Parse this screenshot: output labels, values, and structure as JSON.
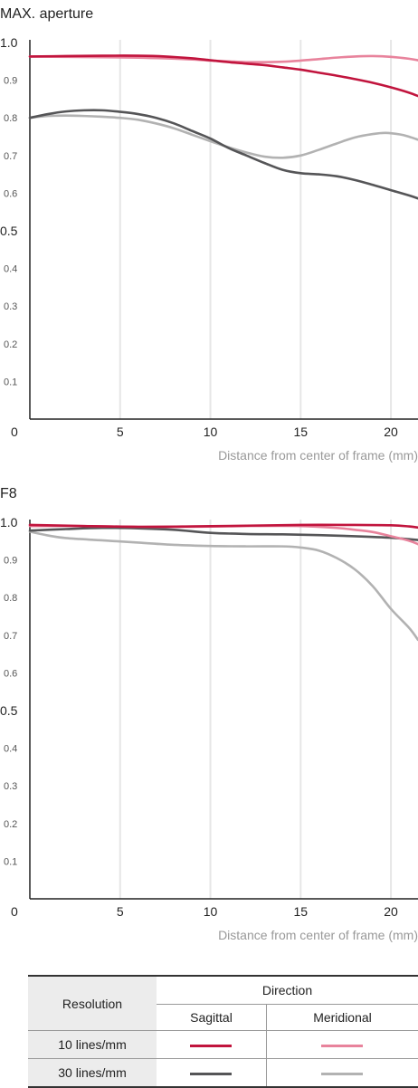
{
  "colors": {
    "s10": "#c1143d",
    "m10": "#e8839c",
    "s30": "#555557",
    "m30": "#b2b2b2"
  },
  "chart_data": [
    {
      "type": "line",
      "title": "MAX. aperture",
      "xlabel": "Distance from center of frame (mm)",
      "ylabel": "",
      "xlim": [
        0,
        21.5
      ],
      "ylim": [
        0,
        1.0
      ],
      "x_ticks": [
        "0",
        "5",
        "10",
        "15",
        "20"
      ],
      "y_ticks": [
        "1.0",
        "0.9",
        "0.8",
        "0.7",
        "0.6",
        "0.5",
        "0.4",
        "0.3",
        "0.2",
        "0.1"
      ],
      "grid": "vertical",
      "series": [
        {
          "key": "s10",
          "x": [
            0,
            2,
            4,
            6,
            7.5,
            9,
            10,
            11,
            12,
            13,
            14,
            15,
            16,
            17,
            18,
            19,
            20,
            21,
            21.5
          ],
          "y": [
            0.963,
            0.964,
            0.965,
            0.965,
            0.963,
            0.958,
            0.953,
            0.948,
            0.944,
            0.94,
            0.934,
            0.928,
            0.92,
            0.912,
            0.903,
            0.893,
            0.881,
            0.867,
            0.858
          ]
        },
        {
          "key": "m10",
          "x": [
            0,
            2,
            4,
            6,
            7.5,
            9,
            10,
            11,
            12,
            13,
            14,
            15,
            16,
            17,
            18,
            19,
            20,
            21,
            21.5
          ],
          "y": [
            0.963,
            0.962,
            0.961,
            0.96,
            0.958,
            0.955,
            0.952,
            0.95,
            0.948,
            0.948,
            0.949,
            0.952,
            0.956,
            0.96,
            0.963,
            0.964,
            0.962,
            0.957,
            0.953
          ]
        },
        {
          "key": "s30",
          "x": [
            0,
            1,
            2,
            3,
            4,
            5,
            6,
            7,
            8,
            9,
            10,
            11,
            12,
            13,
            14,
            15,
            16,
            17,
            18,
            19,
            20,
            21,
            21.5
          ],
          "y": [
            0.8,
            0.81,
            0.817,
            0.82,
            0.82,
            0.816,
            0.81,
            0.8,
            0.785,
            0.765,
            0.745,
            0.72,
            0.7,
            0.68,
            0.662,
            0.653,
            0.65,
            0.645,
            0.635,
            0.622,
            0.608,
            0.594,
            0.586
          ]
        },
        {
          "key": "m30",
          "x": [
            0,
            1,
            2,
            3,
            4,
            5,
            6,
            7,
            8,
            9,
            10,
            11,
            12,
            13,
            14,
            15,
            16,
            17,
            18,
            19,
            19.7,
            20.5,
            21,
            21.5
          ],
          "y": [
            0.8,
            0.805,
            0.806,
            0.805,
            0.803,
            0.8,
            0.795,
            0.785,
            0.772,
            0.755,
            0.738,
            0.722,
            0.708,
            0.697,
            0.694,
            0.7,
            0.715,
            0.732,
            0.748,
            0.757,
            0.76,
            0.756,
            0.75,
            0.742
          ]
        }
      ]
    },
    {
      "type": "line",
      "title": "F8",
      "xlabel": "Distance from center of frame (mm)",
      "ylabel": "",
      "xlim": [
        0,
        21.5
      ],
      "ylim": [
        0,
        1.0
      ],
      "x_ticks": [
        "0",
        "5",
        "10",
        "15",
        "20"
      ],
      "y_ticks": [
        "1.0",
        "0.9",
        "0.8",
        "0.7",
        "0.6",
        "0.5",
        "0.4",
        "0.3",
        "0.2",
        "0.1"
      ],
      "grid": "vertical",
      "series": [
        {
          "key": "s10",
          "x": [
            0,
            3,
            6,
            9,
            12,
            15,
            18,
            20,
            21,
            21.5
          ],
          "y": [
            0.993,
            0.99,
            0.988,
            0.989,
            0.991,
            0.993,
            0.993,
            0.992,
            0.989,
            0.986
          ]
        },
        {
          "key": "m10",
          "x": [
            0,
            3,
            6,
            9,
            12,
            15,
            17,
            18,
            19,
            20,
            21,
            21.5
          ],
          "y": [
            0.99,
            0.99,
            0.988,
            0.988,
            0.99,
            0.99,
            0.985,
            0.98,
            0.974,
            0.963,
            0.951,
            0.942
          ]
        },
        {
          "key": "s30",
          "x": [
            0,
            2,
            4,
            6,
            8,
            10,
            12,
            14,
            16,
            18,
            20,
            21,
            21.5
          ],
          "y": [
            0.978,
            0.982,
            0.985,
            0.984,
            0.98,
            0.972,
            0.969,
            0.968,
            0.966,
            0.963,
            0.959,
            0.955,
            0.953
          ]
        },
        {
          "key": "m30",
          "x": [
            0,
            1,
            2,
            4,
            6,
            8,
            10,
            12,
            14,
            15,
            16,
            17,
            18,
            19,
            20,
            21,
            21.5
          ],
          "y": [
            0.975,
            0.965,
            0.958,
            0.952,
            0.946,
            0.94,
            0.937,
            0.936,
            0.936,
            0.933,
            0.925,
            0.905,
            0.875,
            0.83,
            0.77,
            0.72,
            0.688
          ]
        }
      ]
    }
  ],
  "legend": {
    "resolution_header": "Resolution",
    "direction_header": "Direction",
    "sagittal": "Sagittal",
    "meridional": "Meridional",
    "row_10": "10 lines/mm",
    "row_30": "30 lines/mm"
  }
}
